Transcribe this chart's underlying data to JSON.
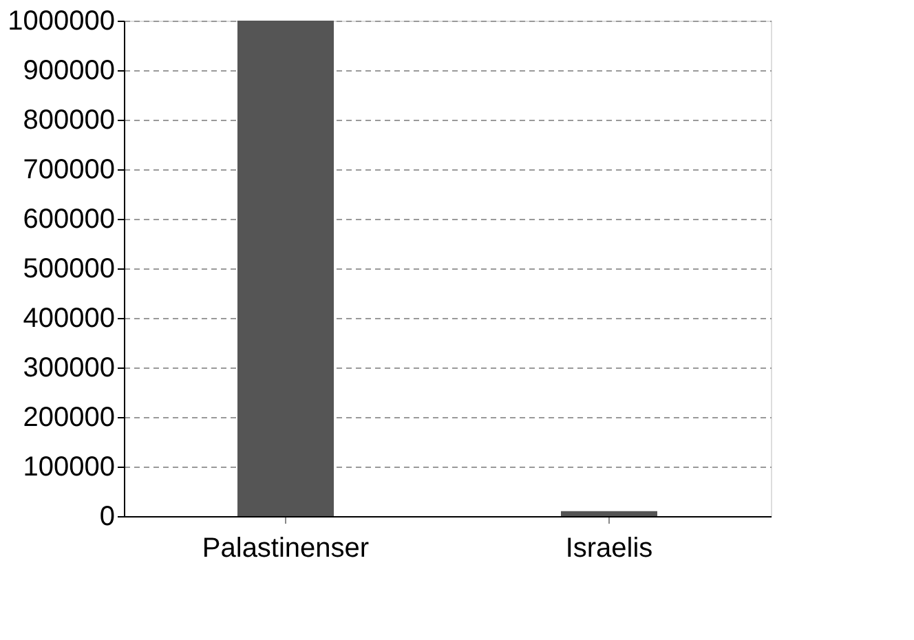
{
  "chart_data": {
    "type": "bar",
    "categories": [
      "Palastinenser",
      "Israelis"
    ],
    "values": [
      1000000,
      10000
    ],
    "color": "#555555",
    "ylim": [
      0,
      1000000
    ],
    "yticks": [
      0,
      100000,
      200000,
      300000,
      400000,
      500000,
      600000,
      700000,
      800000,
      900000,
      1000000
    ],
    "grid": "y"
  }
}
